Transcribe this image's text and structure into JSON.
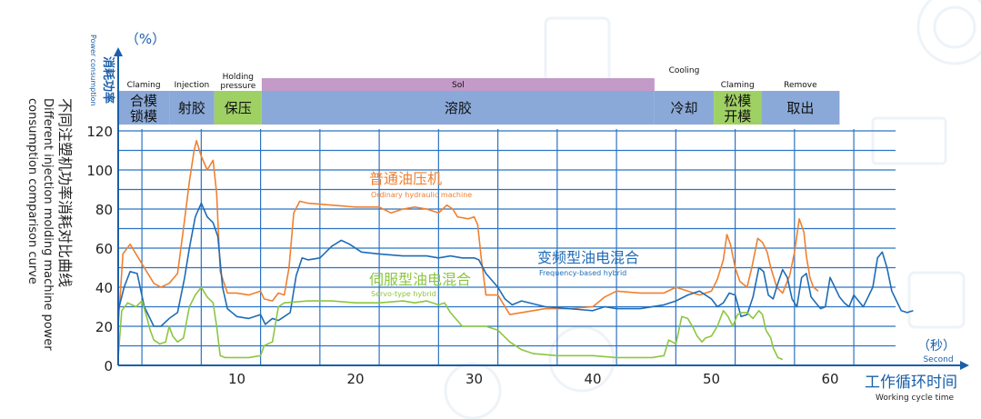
{
  "colors": {
    "axis": "#1a5fa8",
    "grid": "#2b73c4",
    "hydraulic": "#f08030",
    "hybrid": "#1f6cb6",
    "servo": "#8cc640",
    "phase_blue": "#8aa9d8",
    "phase_green": "#9fd063",
    "phase_purple": "#c39ac8",
    "decor": "#eef3f8"
  },
  "y_axis": {
    "unit": "（%）",
    "label_cn": "消耗功率",
    "label_en": "Power consumption"
  },
  "x_axis": {
    "unit": "（秒）",
    "unit_en": "Second",
    "label_cn": "工作循环时间",
    "label_en": "Working cycle time"
  },
  "side_title": {
    "cn": "不同注塑机功率消耗对比曲线",
    "en": "Different injection molding machine power consumption comparison curve"
  },
  "phases": [
    {
      "cn": "合模锁模",
      "en": "Claming",
      "x0": 0,
      "x1": 4.3,
      "color": "phase_blue"
    },
    {
      "cn": "射胶",
      "en": "Injection",
      "x0": 4.3,
      "x1": 8.1,
      "color": "phase_blue"
    },
    {
      "cn": "保压",
      "en": "Holding pressure",
      "x0": 8.1,
      "x1": 12.1,
      "color": "phase_green"
    },
    {
      "cn": "溶胶",
      "en": "Sol",
      "x0": 12.1,
      "x1": 45.2,
      "color": "phase_blue"
    },
    {
      "cn": "冷却",
      "en": "Cooling",
      "x0": 45.2,
      "x1": 50.2,
      "color": "phase_blue"
    },
    {
      "cn": "松模开模",
      "en": "Claming",
      "x0": 50.2,
      "x1": 54.2,
      "color": "phase_green"
    },
    {
      "cn": "取出",
      "en": "Remove",
      "x0": 54.2,
      "x1": 60.8,
      "color": "phase_blue"
    }
  ],
  "chart_data": {
    "type": "line",
    "title": "不同注塑机功率消耗对比曲线",
    "xlabel": "工作循环时间",
    "ylabel": "消耗功率（%）",
    "xlim": [
      0,
      65
    ],
    "ylim": [
      0,
      120
    ],
    "x_ticks": [
      10,
      20,
      30,
      40,
      50,
      60
    ],
    "y_ticks": [
      0,
      20,
      40,
      60,
      80,
      100,
      120
    ],
    "grid": true,
    "series": [
      {
        "name": "普通油压机",
        "name_en": "Ordinary hydraulic machine",
        "color": "hydraulic",
        "points": [
          [
            0,
            20
          ],
          [
            0.4,
            57
          ],
          [
            1,
            62
          ],
          [
            1.6,
            56
          ],
          [
            2.2,
            50
          ],
          [
            3,
            42
          ],
          [
            3.6,
            40
          ],
          [
            4.3,
            42
          ],
          [
            5,
            47
          ],
          [
            5.5,
            70
          ],
          [
            6,
            94
          ],
          [
            6.4,
            110
          ],
          [
            6.6,
            115
          ],
          [
            7,
            107
          ],
          [
            7.5,
            100
          ],
          [
            8,
            105
          ],
          [
            8.3,
            88
          ],
          [
            8.6,
            48
          ],
          [
            9.2,
            37
          ],
          [
            10,
            37
          ],
          [
            11,
            36
          ],
          [
            12,
            38
          ],
          [
            12.3,
            34
          ],
          [
            13,
            33
          ],
          [
            13.5,
            37
          ],
          [
            14,
            36
          ],
          [
            14.4,
            50
          ],
          [
            14.8,
            78
          ],
          [
            15.3,
            84
          ],
          [
            16,
            83
          ],
          [
            18,
            82
          ],
          [
            20,
            81
          ],
          [
            22,
            81
          ],
          [
            23,
            78
          ],
          [
            24,
            80
          ],
          [
            25,
            81
          ],
          [
            26,
            80
          ],
          [
            27,
            78
          ],
          [
            27.7,
            82
          ],
          [
            28.2,
            80
          ],
          [
            28.6,
            76
          ],
          [
            29.5,
            75
          ],
          [
            30,
            76
          ],
          [
            30.3,
            72
          ],
          [
            30.6,
            55
          ],
          [
            31,
            36
          ],
          [
            32,
            36
          ],
          [
            33,
            26
          ],
          [
            34,
            27
          ],
          [
            36,
            29
          ],
          [
            38,
            29
          ],
          [
            40,
            30
          ],
          [
            41,
            35
          ],
          [
            42,
            38
          ],
          [
            44,
            37
          ],
          [
            46,
            37
          ],
          [
            47,
            40
          ],
          [
            48,
            38
          ],
          [
            49,
            36
          ],
          [
            50,
            38
          ],
          [
            50.5,
            44
          ],
          [
            51,
            54
          ],
          [
            51.3,
            67
          ],
          [
            51.6,
            62
          ],
          [
            52,
            50
          ],
          [
            52.4,
            43
          ],
          [
            53,
            40
          ],
          [
            53.4,
            50
          ],
          [
            53.9,
            65
          ],
          [
            54.3,
            63
          ],
          [
            54.7,
            58
          ],
          [
            55,
            50
          ],
          [
            55.5,
            40
          ],
          [
            56,
            37
          ],
          [
            56.6,
            46
          ],
          [
            57,
            58
          ],
          [
            57.4,
            75
          ],
          [
            57.8,
            68
          ],
          [
            58,
            56
          ],
          [
            58.3,
            45
          ],
          [
            58.6,
            40
          ],
          [
            59,
            38
          ]
        ]
      },
      {
        "name": "变频型油电混合",
        "name_en": "Frequency-based hybrid",
        "color": "hybrid",
        "points": [
          [
            0,
            28
          ],
          [
            0.5,
            40
          ],
          [
            1,
            48
          ],
          [
            1.6,
            47
          ],
          [
            2.2,
            30
          ],
          [
            3,
            20
          ],
          [
            3.6,
            20
          ],
          [
            4.3,
            24
          ],
          [
            5,
            27
          ],
          [
            5.6,
            45
          ],
          [
            6,
            60
          ],
          [
            6.5,
            76
          ],
          [
            7,
            83
          ],
          [
            7.5,
            76
          ],
          [
            8,
            73
          ],
          [
            8.4,
            66
          ],
          [
            8.8,
            40
          ],
          [
            9.2,
            29
          ],
          [
            10,
            25
          ],
          [
            11,
            24
          ],
          [
            12,
            26
          ],
          [
            12.4,
            21
          ],
          [
            13,
            24
          ],
          [
            13.5,
            23
          ],
          [
            14,
            25
          ],
          [
            14.5,
            27
          ],
          [
            15,
            46
          ],
          [
            15.5,
            55
          ],
          [
            16,
            54
          ],
          [
            17,
            55
          ],
          [
            18,
            61
          ],
          [
            18.8,
            64
          ],
          [
            19.5,
            62
          ],
          [
            20.5,
            58
          ],
          [
            22,
            57
          ],
          [
            24,
            56
          ],
          [
            26,
            56
          ],
          [
            27,
            55
          ],
          [
            28,
            56
          ],
          [
            29,
            55
          ],
          [
            30,
            55
          ],
          [
            30.4,
            54
          ],
          [
            31,
            47
          ],
          [
            32,
            40
          ],
          [
            32.6,
            34
          ],
          [
            33.2,
            31
          ],
          [
            34,
            33
          ],
          [
            36,
            30
          ],
          [
            38,
            29
          ],
          [
            40,
            28
          ],
          [
            41,
            30
          ],
          [
            42,
            29
          ],
          [
            44,
            29
          ],
          [
            46,
            31
          ],
          [
            47,
            33
          ],
          [
            48,
            36
          ],
          [
            49,
            38
          ],
          [
            50,
            34
          ],
          [
            50.5,
            30
          ],
          [
            51,
            32
          ],
          [
            51.5,
            37
          ],
          [
            52,
            36
          ],
          [
            52.5,
            25
          ],
          [
            53,
            26
          ],
          [
            53.5,
            35
          ],
          [
            54,
            50
          ],
          [
            54.4,
            48
          ],
          [
            54.8,
            36
          ],
          [
            55.2,
            34
          ],
          [
            55.6,
            42
          ],
          [
            56,
            49
          ],
          [
            56.4,
            45
          ],
          [
            56.8,
            34
          ],
          [
            57.2,
            30
          ],
          [
            57.6,
            45
          ],
          [
            58,
            47
          ],
          [
            58.4,
            35
          ],
          [
            58.8,
            32
          ],
          [
            59.2,
            29
          ],
          [
            59.6,
            30
          ],
          [
            60,
            45
          ],
          [
            60.4,
            40
          ],
          [
            60.8,
            35
          ],
          [
            61.2,
            32
          ],
          [
            61.6,
            30
          ],
          [
            62,
            36
          ],
          [
            62.4,
            33
          ],
          [
            62.8,
            30
          ],
          [
            63.2,
            35
          ],
          [
            63.6,
            40
          ],
          [
            64,
            55
          ],
          [
            64.4,
            58
          ],
          [
            64.8,
            50
          ],
          [
            65.2,
            38
          ],
          [
            65.6,
            33
          ],
          [
            66,
            28
          ],
          [
            66.5,
            27
          ],
          [
            67,
            28
          ]
        ]
      },
      {
        "name": "伺服型油电混合",
        "name_en": "Servo-type hybrid",
        "color": "servo",
        "points": [
          [
            0,
            4
          ],
          [
            0.3,
            28
          ],
          [
            0.8,
            32
          ],
          [
            1.5,
            30
          ],
          [
            2,
            33
          ],
          [
            2.4,
            25
          ],
          [
            2.7,
            18
          ],
          [
            3,
            13
          ],
          [
            3.5,
            11
          ],
          [
            4,
            12
          ],
          [
            4.3,
            20
          ],
          [
            4.6,
            15
          ],
          [
            5,
            12
          ],
          [
            5.5,
            14
          ],
          [
            6,
            30
          ],
          [
            6.5,
            36
          ],
          [
            7,
            40
          ],
          [
            7.5,
            35
          ],
          [
            8,
            32
          ],
          [
            8.3,
            20
          ],
          [
            8.6,
            5
          ],
          [
            9,
            4
          ],
          [
            10,
            4
          ],
          [
            11,
            4
          ],
          [
            12,
            5
          ],
          [
            12.3,
            10
          ],
          [
            12.6,
            11
          ],
          [
            13,
            12
          ],
          [
            13.5,
            30
          ],
          [
            14,
            32
          ],
          [
            16,
            33
          ],
          [
            18,
            33
          ],
          [
            20,
            32
          ],
          [
            22,
            32
          ],
          [
            24,
            33
          ],
          [
            25,
            32
          ],
          [
            26,
            33
          ],
          [
            27,
            31
          ],
          [
            27.5,
            32
          ],
          [
            28,
            27
          ],
          [
            29,
            20
          ],
          [
            30,
            20
          ],
          [
            31,
            20
          ],
          [
            32,
            18
          ],
          [
            33,
            12
          ],
          [
            34,
            8
          ],
          [
            35,
            6
          ],
          [
            37,
            5
          ],
          [
            40,
            5
          ],
          [
            42,
            4
          ],
          [
            45,
            4
          ],
          [
            46,
            5
          ],
          [
            46.4,
            13
          ],
          [
            47,
            11
          ],
          [
            47.5,
            25
          ],
          [
            48,
            24
          ],
          [
            48.4,
            20
          ],
          [
            48.8,
            15
          ],
          [
            49.2,
            12
          ],
          [
            49.5,
            14
          ],
          [
            50,
            15
          ],
          [
            50.5,
            20
          ],
          [
            51,
            28
          ],
          [
            51.4,
            25
          ],
          [
            51.8,
            20
          ],
          [
            52.2,
            26
          ],
          [
            52.6,
            27
          ],
          [
            53,
            27
          ],
          [
            53.5,
            24
          ],
          [
            54,
            28
          ],
          [
            54.3,
            26
          ],
          [
            54.6,
            18
          ],
          [
            55,
            14
          ],
          [
            55.2,
            9
          ],
          [
            55.6,
            4
          ],
          [
            56,
            3
          ]
        ]
      }
    ]
  }
}
